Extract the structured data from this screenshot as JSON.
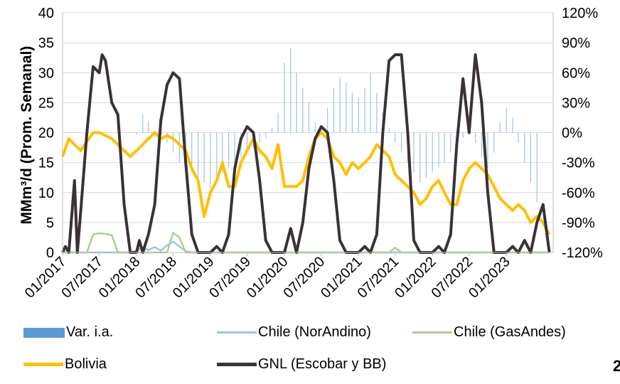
{
  "chart_data": {
    "type": "line",
    "title": "",
    "ylabel": "MMm³/d (Prom. Semanal)",
    "ylim": [
      0,
      40
    ],
    "y_ticks": [
      "0",
      "5",
      "10",
      "15",
      "20",
      "25",
      "30",
      "35",
      "40"
    ],
    "y2lim": [
      -120,
      120
    ],
    "y2_ticks": [
      "-120%",
      "-90%",
      "-60%",
      "-30%",
      "0%",
      "30%",
      "60%",
      "90%",
      "120%"
    ],
    "x_range": [
      "2017-01",
      "2023-08"
    ],
    "x_ticks": [
      "01/2017",
      "07/2017",
      "01/2018",
      "07/2018",
      "01/2019",
      "07/2019",
      "01/2020",
      "07/2020",
      "01/2021",
      "07/2021",
      "01/2022",
      "07/2022",
      "01/2023"
    ],
    "grid": true,
    "legend_position": "bottom",
    "series": [
      {
        "name": "Var. i.a.",
        "axis": "right",
        "style": "bars",
        "color": "#5B9BD5",
        "points": [
          [
            "2018-01",
            -2
          ],
          [
            "2018-02",
            18
          ],
          [
            "2018-03",
            12
          ],
          [
            "2018-04",
            -5
          ],
          [
            "2018-05",
            8
          ],
          [
            "2018-06",
            -10
          ],
          [
            "2018-07",
            -20
          ],
          [
            "2018-08",
            -30
          ],
          [
            "2018-09",
            -35
          ],
          [
            "2018-10",
            -40
          ],
          [
            "2018-11",
            -45
          ],
          [
            "2018-12",
            -50
          ],
          [
            "2019-01",
            -55
          ],
          [
            "2019-02",
            -50
          ],
          [
            "2019-03",
            -40
          ],
          [
            "2019-04",
            -35
          ],
          [
            "2019-05",
            -30
          ],
          [
            "2019-06",
            -25
          ],
          [
            "2019-07",
            -20
          ],
          [
            "2019-08",
            -15
          ],
          [
            "2019-09",
            -10
          ],
          [
            "2019-10",
            -5
          ],
          [
            "2019-11",
            5
          ],
          [
            "2019-12",
            20
          ],
          [
            "2020-01",
            70
          ],
          [
            "2020-02",
            85
          ],
          [
            "2020-03",
            60
          ],
          [
            "2020-04",
            45
          ],
          [
            "2020-05",
            30
          ],
          [
            "2020-06",
            10
          ],
          [
            "2020-07",
            5
          ],
          [
            "2020-08",
            25
          ],
          [
            "2020-09",
            45
          ],
          [
            "2020-10",
            55
          ],
          [
            "2020-11",
            50
          ],
          [
            "2020-12",
            40
          ],
          [
            "2021-01",
            35
          ],
          [
            "2021-02",
            45
          ],
          [
            "2021-03",
            60
          ],
          [
            "2021-04",
            40
          ],
          [
            "2021-05",
            20
          ],
          [
            "2021-06",
            5
          ],
          [
            "2021-07",
            -10
          ],
          [
            "2021-08",
            -20
          ],
          [
            "2021-09",
            -30
          ],
          [
            "2021-10",
            -40
          ],
          [
            "2021-11",
            -50
          ],
          [
            "2021-12",
            -45
          ],
          [
            "2022-01",
            -40
          ],
          [
            "2022-02",
            -35
          ],
          [
            "2022-03",
            -30
          ],
          [
            "2022-04",
            -20
          ],
          [
            "2022-05",
            -10
          ],
          [
            "2022-06",
            -5
          ],
          [
            "2022-07",
            5
          ],
          [
            "2022-08",
            -10
          ],
          [
            "2022-09",
            -25
          ],
          [
            "2022-10",
            -35
          ],
          [
            "2022-11",
            -20
          ],
          [
            "2022-12",
            10
          ],
          [
            "2023-01",
            25
          ],
          [
            "2023-02",
            15
          ],
          [
            "2023-03",
            -10
          ],
          [
            "2023-04",
            -30
          ],
          [
            "2023-05",
            -50
          ],
          [
            "2023-06",
            -70
          ]
        ]
      },
      {
        "name": "Chile (NorAndino)",
        "axis": "left",
        "style": "line",
        "color": "#9DC3E6",
        "points": [
          [
            "2017-01",
            0
          ],
          [
            "2017-12",
            0
          ],
          [
            "2018-01",
            0.3
          ],
          [
            "2018-02",
            0.8
          ],
          [
            "2018-03",
            0.4
          ],
          [
            "2018-04",
            0.9
          ],
          [
            "2018-05",
            0.3
          ],
          [
            "2018-06",
            1.2
          ],
          [
            "2018-07",
            1.8
          ],
          [
            "2018-08",
            1.0
          ],
          [
            "2018-09",
            0.2
          ],
          [
            "2018-10",
            0
          ],
          [
            "2023-08",
            0
          ]
        ]
      },
      {
        "name": "Chile (GasAndes)",
        "axis": "left",
        "style": "line",
        "color": "#A9D18E",
        "points": [
          [
            "2017-01",
            0
          ],
          [
            "2017-05",
            0
          ],
          [
            "2017-06",
            3.0
          ],
          [
            "2017-07",
            3.2
          ],
          [
            "2017-08",
            3.1
          ],
          [
            "2017-09",
            2.9
          ],
          [
            "2017-10",
            0
          ],
          [
            "2018-06",
            0
          ],
          [
            "2018-07",
            3.3
          ],
          [
            "2018-08",
            2.5
          ],
          [
            "2018-09",
            0
          ],
          [
            "2021-06",
            0
          ],
          [
            "2021-07",
            0.8
          ],
          [
            "2021-08",
            0
          ],
          [
            "2023-08",
            0
          ]
        ]
      },
      {
        "name": "Bolivia",
        "axis": "left",
        "style": "line",
        "color": "#FFC000",
        "points": [
          [
            "2017-01",
            16
          ],
          [
            "2017-02",
            19
          ],
          [
            "2017-03",
            18
          ],
          [
            "2017-04",
            17
          ],
          [
            "2017-05",
            18.5
          ],
          [
            "2017-06",
            20
          ],
          [
            "2017-07",
            20
          ],
          [
            "2017-08",
            19.5
          ],
          [
            "2017-09",
            19
          ],
          [
            "2017-10",
            18
          ],
          [
            "2017-11",
            17
          ],
          [
            "2017-12",
            16
          ],
          [
            "2018-01",
            17
          ],
          [
            "2018-02",
            18
          ],
          [
            "2018-03",
            19
          ],
          [
            "2018-04",
            20
          ],
          [
            "2018-05",
            19
          ],
          [
            "2018-06",
            19.5
          ],
          [
            "2018-07",
            19
          ],
          [
            "2018-08",
            18
          ],
          [
            "2018-09",
            17
          ],
          [
            "2018-10",
            14
          ],
          [
            "2018-11",
            12
          ],
          [
            "2018-12",
            6
          ],
          [
            "2019-01",
            10
          ],
          [
            "2019-02",
            12
          ],
          [
            "2019-03",
            15
          ],
          [
            "2019-04",
            11
          ],
          [
            "2019-05",
            11
          ],
          [
            "2019-06",
            15
          ],
          [
            "2019-07",
            17
          ],
          [
            "2019-08",
            19
          ],
          [
            "2019-09",
            17
          ],
          [
            "2019-10",
            16
          ],
          [
            "2019-11",
            14
          ],
          [
            "2019-12",
            18
          ],
          [
            "2020-01",
            11
          ],
          [
            "2020-02",
            11
          ],
          [
            "2020-03",
            11
          ],
          [
            "2020-04",
            12
          ],
          [
            "2020-05",
            16
          ],
          [
            "2020-06",
            19
          ],
          [
            "2020-07",
            20
          ],
          [
            "2020-08",
            19
          ],
          [
            "2020-09",
            16
          ],
          [
            "2020-10",
            15
          ],
          [
            "2020-11",
            13
          ],
          [
            "2020-12",
            15
          ],
          [
            "2021-01",
            14
          ],
          [
            "2021-02",
            15
          ],
          [
            "2021-03",
            16
          ],
          [
            "2021-04",
            18
          ],
          [
            "2021-05",
            17
          ],
          [
            "2021-06",
            16
          ],
          [
            "2021-07",
            13
          ],
          [
            "2021-08",
            12
          ],
          [
            "2021-09",
            11
          ],
          [
            "2021-10",
            10
          ],
          [
            "2021-11",
            8
          ],
          [
            "2021-12",
            9
          ],
          [
            "2022-01",
            11
          ],
          [
            "2022-02",
            12
          ],
          [
            "2022-03",
            10
          ],
          [
            "2022-04",
            8
          ],
          [
            "2022-05",
            8
          ],
          [
            "2022-06",
            12
          ],
          [
            "2022-07",
            14
          ],
          [
            "2022-08",
            15
          ],
          [
            "2022-09",
            14
          ],
          [
            "2022-10",
            13
          ],
          [
            "2022-11",
            11
          ],
          [
            "2022-12",
            9
          ],
          [
            "2023-01",
            8
          ],
          [
            "2023-02",
            7
          ],
          [
            "2023-03",
            8
          ],
          [
            "2023-04",
            7
          ],
          [
            "2023-05",
            5
          ],
          [
            "2023-06",
            6
          ],
          [
            "2023-07",
            5
          ],
          [
            "2023-08",
            3
          ]
        ]
      },
      {
        "name": "GNL (Escobar y BB)",
        "axis": "left",
        "style": "line",
        "color": "#3A3237",
        "points": [
          [
            "2017-01",
            0
          ],
          [
            "2017-01-15",
            1
          ],
          [
            "2017-02",
            0
          ],
          [
            "2017-03",
            12
          ],
          [
            "2017-03-15",
            0
          ],
          [
            "2017-04",
            7
          ],
          [
            "2017-05",
            20
          ],
          [
            "2017-06",
            31
          ],
          [
            "2017-07",
            30
          ],
          [
            "2017-07-15",
            33
          ],
          [
            "2017-08",
            32
          ],
          [
            "2017-09",
            25
          ],
          [
            "2017-10",
            23
          ],
          [
            "2017-11",
            8
          ],
          [
            "2017-12",
            0
          ],
          [
            "2018-01",
            0
          ],
          [
            "2018-01-15",
            2
          ],
          [
            "2018-02",
            0
          ],
          [
            "2018-03",
            3
          ],
          [
            "2018-04",
            8
          ],
          [
            "2018-05",
            22
          ],
          [
            "2018-06",
            28
          ],
          [
            "2018-07",
            30
          ],
          [
            "2018-08",
            29
          ],
          [
            "2018-09",
            15
          ],
          [
            "2018-10",
            3
          ],
          [
            "2018-11",
            0
          ],
          [
            "2019-01",
            0
          ],
          [
            "2019-02",
            1
          ],
          [
            "2019-03",
            0
          ],
          [
            "2019-04",
            3
          ],
          [
            "2019-05",
            14
          ],
          [
            "2019-06",
            19
          ],
          [
            "2019-07",
            21
          ],
          [
            "2019-08",
            20
          ],
          [
            "2019-09",
            12
          ],
          [
            "2019-10",
            2
          ],
          [
            "2019-11",
            0
          ],
          [
            "2020-01",
            0
          ],
          [
            "2020-02",
            4
          ],
          [
            "2020-03",
            0
          ],
          [
            "2020-04",
            5
          ],
          [
            "2020-05",
            14
          ],
          [
            "2020-06",
            19
          ],
          [
            "2020-07",
            21
          ],
          [
            "2020-08",
            20
          ],
          [
            "2020-09",
            12
          ],
          [
            "2020-10",
            2
          ],
          [
            "2020-11",
            0
          ],
          [
            "2021-01",
            0
          ],
          [
            "2021-02",
            1
          ],
          [
            "2021-03",
            0
          ],
          [
            "2021-04",
            3
          ],
          [
            "2021-05",
            20
          ],
          [
            "2021-06",
            32
          ],
          [
            "2021-07",
            33
          ],
          [
            "2021-08",
            33
          ],
          [
            "2021-09",
            20
          ],
          [
            "2021-10",
            2
          ],
          [
            "2021-11",
            0
          ],
          [
            "2022-01",
            0
          ],
          [
            "2022-02",
            1
          ],
          [
            "2022-03",
            0
          ],
          [
            "2022-04",
            3
          ],
          [
            "2022-05",
            18
          ],
          [
            "2022-06",
            29
          ],
          [
            "2022-07",
            20
          ],
          [
            "2022-08",
            33
          ],
          [
            "2022-09",
            25
          ],
          [
            "2022-10",
            10
          ],
          [
            "2022-11",
            0
          ],
          [
            "2023-01",
            0
          ],
          [
            "2023-02",
            1
          ],
          [
            "2023-03",
            0
          ],
          [
            "2023-04",
            2
          ],
          [
            "2023-05",
            0
          ],
          [
            "2023-06",
            5
          ],
          [
            "2023-07",
            8
          ],
          [
            "2023-08",
            0
          ]
        ]
      }
    ]
  },
  "legend": {
    "items": [
      {
        "label": "Var. i.a.",
        "color": "#5B9BD5",
        "kind": "box"
      },
      {
        "label": "Chile (NorAndino)",
        "color": "#9DC3E6",
        "kind": "line"
      },
      {
        "label": "Chile (GasAndes)",
        "color": "#A9D18E",
        "kind": "line"
      },
      {
        "label": "Bolivia",
        "color": "#FFC000",
        "kind": "line"
      },
      {
        "label": "GNL (Escobar y BB)",
        "color": "#3A3237",
        "kind": "line"
      }
    ]
  },
  "page_number": "2"
}
